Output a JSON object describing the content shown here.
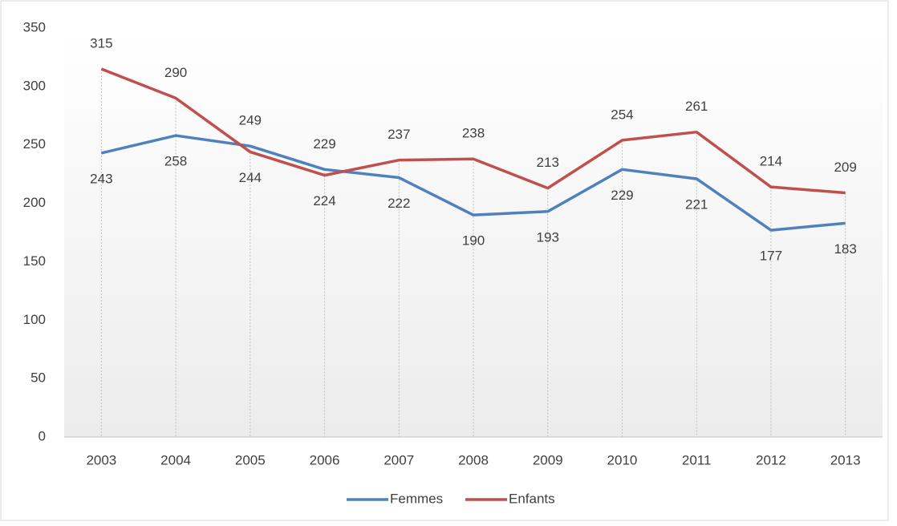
{
  "chart_data": {
    "type": "line",
    "categories": [
      "2003",
      "2004",
      "2005",
      "2006",
      "2007",
      "2008",
      "2009",
      "2010",
      "2011",
      "2012",
      "2013"
    ],
    "series": [
      {
        "name": "Femmes",
        "color": "#4f81bd",
        "values": [
          243,
          258,
          249,
          229,
          222,
          190,
          193,
          229,
          221,
          177,
          183
        ]
      },
      {
        "name": "Enfants",
        "color": "#c0504d",
        "values": [
          315,
          290,
          244,
          224,
          237,
          238,
          213,
          254,
          261,
          214,
          209
        ]
      }
    ],
    "ylim": [
      0,
      350
    ],
    "yticks": [
      0,
      50,
      100,
      150,
      200,
      250,
      300,
      350
    ],
    "legend": "bottom"
  }
}
